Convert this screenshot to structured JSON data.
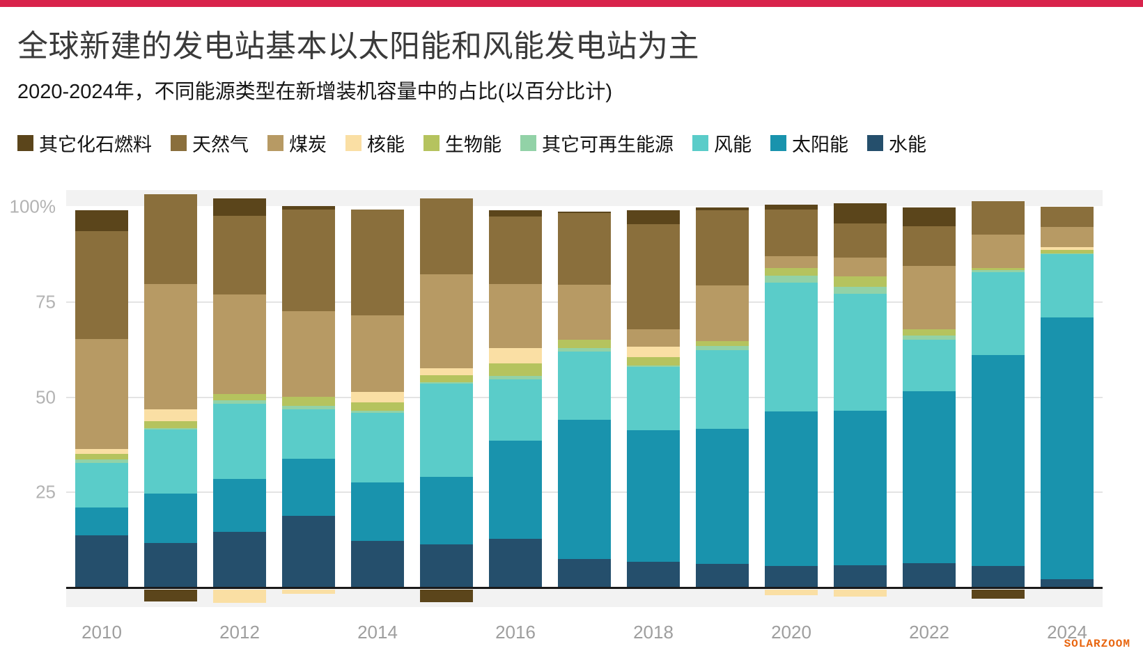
{
  "page": {
    "accent_bar_color": "#d8234b",
    "background_color": "#ffffff",
    "overflow_band_color": "#f2f2f2"
  },
  "header": {
    "title": "全球新建的发电站基本以太阳能和风能发电站为主",
    "subtitle": "2020-2024年，不同能源类型在新增装机容量中的占比(以百分比计)"
  },
  "legend": [
    {
      "label": "其它化石燃料",
      "key": "fossil",
      "color": "#5b451b"
    },
    {
      "label": "天然气",
      "key": "gas",
      "color": "#8a6f3c"
    },
    {
      "label": "煤炭",
      "key": "coal",
      "color": "#b79a64"
    },
    {
      "label": "核能",
      "key": "nuclear",
      "color": "#fadfa4"
    },
    {
      "label": "生物能",
      "key": "bioenergy",
      "color": "#b5c35e"
    },
    {
      "label": "其它可再生能源",
      "key": "other_renewables",
      "color": "#92d2a7"
    },
    {
      "label": "风能",
      "key": "wind",
      "color": "#5accc9"
    },
    {
      "label": "太阳能",
      "key": "solar",
      "color": "#1993ad"
    },
    {
      "label": "水能",
      "key": "hydro",
      "color": "#254f6c"
    }
  ],
  "watermark": "SOLARZOOM",
  "chart_data": {
    "type": "bar",
    "stacked": true,
    "unit": "percent",
    "title": "全球新建的发电站基本以太阳能和风能发电站为主",
    "subtitle": "2020-2024年，不同能源类型在新增装机容量中的占比(以百分比计)",
    "categories": [
      2010,
      2011,
      2012,
      2013,
      2014,
      2015,
      2016,
      2017,
      2018,
      2019,
      2020,
      2021,
      2022,
      2023,
      2024
    ],
    "x_axis": {
      "tick_labels": [
        "2010",
        "2012",
        "2014",
        "2016",
        "2018",
        "2020",
        "2022",
        "2024"
      ]
    },
    "y_axis": {
      "tick_labels": [
        "100%",
        "75",
        "50",
        "25"
      ],
      "tick_values": [
        100,
        75,
        50,
        25
      ],
      "grid": true,
      "plot_range": [
        -5.5,
        104.5
      ]
    },
    "legend_position": "top",
    "stack_order_bottom_to_top": [
      "hydro",
      "solar",
      "wind",
      "other_renewables",
      "bioenergy",
      "nuclear",
      "coal",
      "gas",
      "fossil"
    ],
    "series": [
      {
        "key": "hydro",
        "name": "水能",
        "color": "#254f6c",
        "values": [
          13.7,
          11.7,
          14.6,
          18.8,
          12.2,
          11.3,
          12.8,
          7.5,
          6.8,
          6.2,
          5.7,
          5.9,
          6.4,
          5.7,
          2.2
        ]
      },
      {
        "key": "solar",
        "name": "太阳能",
        "color": "#1993ad",
        "values": [
          7.3,
          13.0,
          13.9,
          15.0,
          15.4,
          17.7,
          25.8,
          36.6,
          34.6,
          35.5,
          40.6,
          40.6,
          45.2,
          55.4,
          68.7
        ]
      },
      {
        "key": "wind",
        "name": "风能",
        "color": "#5accc9",
        "values": [
          11.7,
          16.8,
          19.7,
          13.0,
          18.3,
          24.5,
          16.1,
          17.9,
          16.5,
          20.7,
          33.8,
          30.7,
          13.5,
          21.8,
          16.6
        ]
      },
      {
        "key": "other_renewables",
        "name": "其它可再生能源",
        "color": "#92d2a7",
        "values": [
          0.9,
          0.4,
          0.9,
          0.9,
          0.5,
          0.5,
          0.9,
          0.9,
          0.5,
          1.1,
          1.8,
          1.8,
          1.1,
          0.4,
          0.3
        ]
      },
      {
        "key": "bioenergy",
        "name": "生物能",
        "color": "#b5c35e",
        "values": [
          1.5,
          1.8,
          1.8,
          2.4,
          2.2,
          1.8,
          3.3,
          2.2,
          2.2,
          1.3,
          2.0,
          2.7,
          1.6,
          0.7,
          0.9
        ]
      },
      {
        "key": "nuclear",
        "name": "核能",
        "color": "#fadfa4",
        "values": [
          1.3,
          3.1,
          -3.4,
          -1.1,
          2.7,
          1.8,
          4.0,
          0,
          2.7,
          0,
          -1.4,
          -1.8,
          0,
          0,
          0.7
        ]
      },
      {
        "key": "coal",
        "name": "煤炭",
        "color": "#b79a64",
        "values": [
          28.9,
          32.9,
          26.1,
          22.5,
          20.1,
          24.7,
          16.8,
          14.4,
          4.6,
          14.6,
          3.1,
          4.9,
          16.6,
          8.6,
          5.3
        ]
      },
      {
        "key": "gas",
        "name": "天然气",
        "color": "#8a6f3c",
        "values": [
          28.3,
          23.6,
          20.7,
          26.7,
          27.8,
          19.9,
          17.7,
          18.8,
          27.6,
          19.7,
          12.2,
          9.1,
          10.4,
          8.8,
          5.3
        ]
      },
      {
        "key": "fossil",
        "name": "其它化石燃料",
        "color": "#5b451b",
        "values": [
          5.5,
          -3.1,
          4.5,
          0.9,
          0,
          -3.3,
          1.6,
          0.5,
          3.5,
          0.7,
          1.3,
          5.3,
          5.1,
          -2.3,
          0
        ]
      }
    ]
  }
}
